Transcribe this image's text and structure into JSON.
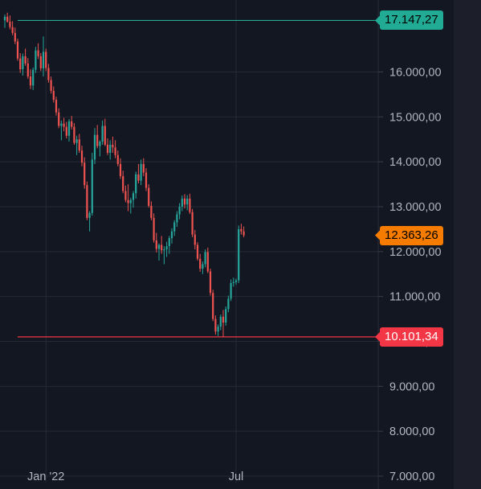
{
  "chart_data": {
    "type": "candlestick",
    "ylim": [
      7000,
      17500
    ],
    "y_ticks": [
      {
        "value": 7000,
        "label": "7.000,00"
      },
      {
        "value": 8000,
        "label": "8.000,00"
      },
      {
        "value": 9000,
        "label": "9.000,00"
      },
      {
        "value": 10000,
        "label": "10.000,00"
      },
      {
        "value": 11000,
        "label": "11.000,00"
      },
      {
        "value": 12000,
        "label": "12.000,00"
      },
      {
        "value": 13000,
        "label": "13.000,00"
      },
      {
        "value": 14000,
        "label": "14.000,00"
      },
      {
        "value": 15000,
        "label": "15.000,00"
      },
      {
        "value": 16000,
        "label": "16.000,00"
      }
    ],
    "x_ticks": [
      {
        "index": 16,
        "label": "Jan '22"
      },
      {
        "index": 90,
        "label": "Jul"
      }
    ],
    "horizontal_lines": [
      {
        "value": 17147.27,
        "label": "17.147,27",
        "color": "#22ab94",
        "badge_color": "#22ab94",
        "badge_text_color": "#000000"
      },
      {
        "value": 10101.34,
        "label": "10.101,34",
        "color": "#f23645",
        "badge_color": "#f23645",
        "badge_text_color": "#ffffff"
      }
    ],
    "last_price": {
      "value": 12363.26,
      "label": "12.363,26",
      "badge_color": "#f57c00",
      "badge_text_color": "#000000"
    },
    "up_color": "#26a69a",
    "down_color": "#ef5350",
    "candles": [
      [
        17150,
        17280,
        16980,
        17230
      ],
      [
        17230,
        17320,
        17100,
        17120
      ],
      [
        17120,
        17260,
        16950,
        17000
      ],
      [
        17000,
        17130,
        16820,
        16870
      ],
      [
        16870,
        16990,
        16620,
        16680
      ],
      [
        16680,
        16740,
        16250,
        16300
      ],
      [
        16300,
        16420,
        15980,
        16060
      ],
      [
        16060,
        16410,
        15920,
        16350
      ],
      [
        16350,
        16520,
        16140,
        16190
      ],
      [
        16190,
        16310,
        15850,
        15900
      ],
      [
        15900,
        16060,
        15620,
        15700
      ],
      [
        15700,
        16100,
        15600,
        16050
      ],
      [
        16050,
        16560,
        15980,
        16480
      ],
      [
        16480,
        16640,
        16290,
        16350
      ],
      [
        16350,
        16420,
        16020,
        16080
      ],
      [
        16080,
        16790,
        15900,
        16450
      ],
      [
        16450,
        16520,
        16020,
        16090
      ],
      [
        16090,
        16180,
        15760,
        15820
      ],
      [
        15820,
        15900,
        15520,
        15580
      ],
      [
        15580,
        15680,
        15320,
        15380
      ],
      [
        15380,
        15450,
        15030,
        15100
      ],
      [
        15100,
        15190,
        14750,
        14800
      ],
      [
        14800,
        14920,
        14480,
        14850
      ],
      [
        14850,
        14980,
        14680,
        14780
      ],
      [
        14780,
        14890,
        14520,
        14580
      ],
      [
        14580,
        14950,
        14450,
        14900
      ],
      [
        14900,
        15020,
        14720,
        14780
      ],
      [
        14780,
        14860,
        14380,
        14420
      ],
      [
        14420,
        14580,
        14150,
        14500
      ],
      [
        14500,
        14620,
        14200,
        14250
      ],
      [
        14250,
        14360,
        13900,
        13980
      ],
      [
        13980,
        14100,
        13400,
        13480
      ],
      [
        13480,
        13560,
        12700,
        12750
      ],
      [
        12750,
        12900,
        12450,
        12860
      ],
      [
        12860,
        14200,
        12800,
        14050
      ],
      [
        14050,
        14750,
        13950,
        14600
      ],
      [
        14600,
        14820,
        14300,
        14350
      ],
      [
        14350,
        14480,
        14120,
        14450
      ],
      [
        14450,
        14920,
        14380,
        14800
      ],
      [
        14800,
        14960,
        14350,
        14380
      ],
      [
        14380,
        14520,
        14150,
        14200
      ],
      [
        14200,
        14480,
        14050,
        14380
      ],
      [
        14380,
        14560,
        14200,
        14320
      ],
      [
        14320,
        14480,
        14080,
        14150
      ],
      [
        14150,
        14250,
        13900,
        13950
      ],
      [
        13950,
        14080,
        13620,
        13680
      ],
      [
        13680,
        13800,
        13300,
        13350
      ],
      [
        13350,
        13470,
        13100,
        13150
      ],
      [
        13150,
        13500,
        12900,
        13080
      ],
      [
        13080,
        13200,
        12850,
        13150
      ],
      [
        13150,
        13350,
        12980,
        13300
      ],
      [
        13300,
        13780,
        13180,
        13720
      ],
      [
        13720,
        13950,
        13520,
        13580
      ],
      [
        13580,
        14050,
        13480,
        13950
      ],
      [
        13950,
        14080,
        13680,
        13760
      ],
      [
        13760,
        13860,
        13350,
        13420
      ],
      [
        13420,
        13500,
        12980,
        13020
      ],
      [
        13020,
        13120,
        12700,
        12750
      ],
      [
        12750,
        12850,
        12200,
        12250
      ],
      [
        12250,
        12420,
        11980,
        12060
      ],
      [
        12060,
        12180,
        11800,
        12150
      ],
      [
        12150,
        12350,
        11950,
        12030
      ],
      [
        12030,
        12120,
        11720,
        12050
      ],
      [
        12050,
        12220,
        11880,
        12120
      ],
      [
        12120,
        12350,
        11950,
        12300
      ],
      [
        12300,
        12520,
        12180,
        12450
      ],
      [
        12450,
        12700,
        12350,
        12650
      ],
      [
        12650,
        12900,
        12550,
        12830
      ],
      [
        12830,
        13080,
        12720,
        13000
      ],
      [
        13000,
        13250,
        12900,
        13180
      ],
      [
        13180,
        13280,
        12960,
        13050
      ],
      [
        13050,
        13260,
        12920,
        13180
      ],
      [
        13180,
        13290,
        12840,
        12880
      ],
      [
        12880,
        12950,
        12320,
        12380
      ],
      [
        12380,
        12480,
        12050,
        12150
      ],
      [
        12150,
        12210,
        11800,
        11840
      ],
      [
        11840,
        11950,
        11550,
        11620
      ],
      [
        11620,
        11780,
        11500,
        11720
      ],
      [
        11720,
        12050,
        11650,
        11990
      ],
      [
        11990,
        12090,
        11520,
        11560
      ],
      [
        11560,
        11620,
        11020,
        11080
      ],
      [
        11080,
        11150,
        10450,
        10500
      ],
      [
        10500,
        10580,
        10150,
        10220
      ],
      [
        10220,
        10380,
        10120,
        10330
      ],
      [
        10330,
        10600,
        10250,
        10550
      ],
      [
        10550,
        10700,
        10100,
        10420
      ],
      [
        10420,
        10780,
        10350,
        10720
      ],
      [
        10720,
        11020,
        10650,
        10950
      ],
      [
        10950,
        11380,
        10900,
        11300
      ],
      [
        11300,
        11420,
        11220,
        11320
      ],
      [
        11320,
        11400,
        11260,
        11360
      ],
      [
        11360,
        12580,
        11300,
        12500
      ],
      [
        12500,
        12620,
        12380,
        12450
      ],
      [
        12450,
        12560,
        12320,
        12363.26
      ]
    ]
  }
}
